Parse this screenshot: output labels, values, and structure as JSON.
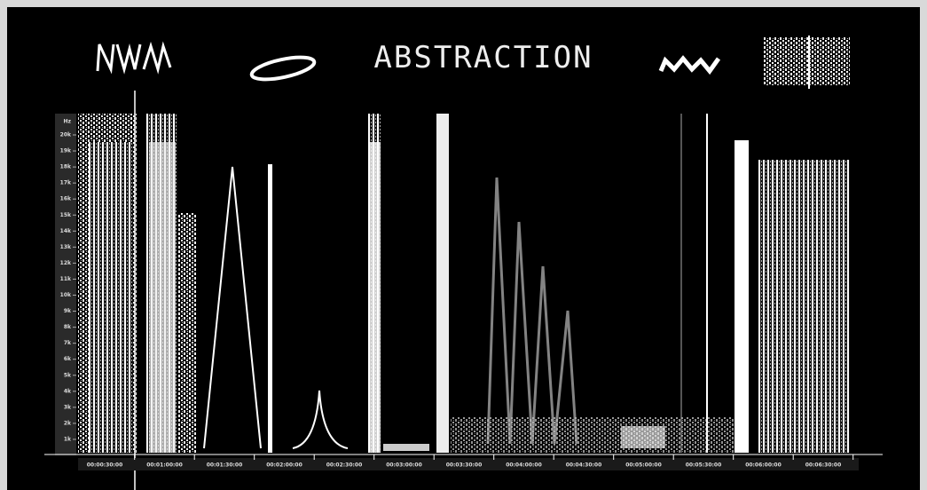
{
  "header": {
    "title": "ABSTRACTION"
  },
  "frequency_axis": {
    "labels": [
      "Hz",
      "20k",
      "19k",
      "18k",
      "17k",
      "16k",
      "15k",
      "14k",
      "13k",
      "12k",
      "11k",
      "10k",
      "9k",
      "8k",
      "7k",
      "6k",
      "5k",
      "4k",
      "3k",
      "2k",
      "1k"
    ]
  },
  "time_axis": {
    "labels": [
      "00:00:30:00",
      "00:01:00:00",
      "00:01:30:00",
      "00:02:00:00",
      "00:02:30:00",
      "00:03:00:00",
      "00:03:30:00",
      "00:04:00:00",
      "00:04:30:00",
      "00:05:00:00",
      "00:05:30:00",
      "00:06:00:00",
      "00:06:30:00"
    ]
  }
}
